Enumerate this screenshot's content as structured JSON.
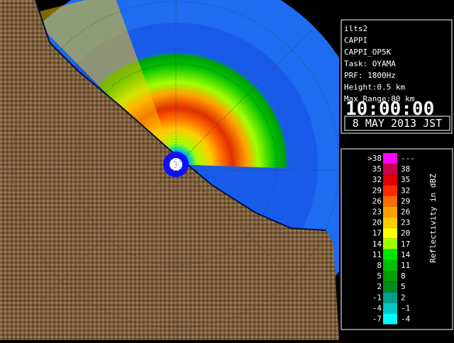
{
  "info": {
    "station": "ilts2",
    "product": "CAPPI",
    "product_name": "CAPPI_OP5K",
    "task": "Task: OYAMA",
    "prf": "PRF: 1800Hz",
    "height": "Height:0.5 km",
    "max_range": "Max Range:80 km",
    "time": "10:00:00",
    "date": "8 MAY 2013 JST"
  },
  "legend": {
    "title": "Reflectivity in dBZ",
    "rows": [
      {
        "low": ">38",
        "high": "---",
        "color": "#ff00ff"
      },
      {
        "low": "35",
        "high": "38",
        "color": "#c8004e"
      },
      {
        "low": "32",
        "high": "35",
        "color": "#e00000"
      },
      {
        "low": "29",
        "high": "32",
        "color": "#ff2a00"
      },
      {
        "low": "26",
        "high": "29",
        "color": "#ff6a00"
      },
      {
        "low": "23",
        "high": "26",
        "color": "#ffa000"
      },
      {
        "low": "20",
        "high": "23",
        "color": "#ffcc00"
      },
      {
        "low": "17",
        "high": "20",
        "color": "#ffff00"
      },
      {
        "low": "14",
        "high": "17",
        "color": "#a0ff00"
      },
      {
        "low": "11",
        "high": "14",
        "color": "#00e600"
      },
      {
        "low": "8",
        "high": "11",
        "color": "#00c000"
      },
      {
        "low": "5",
        "high": "8",
        "color": "#00a000"
      },
      {
        "low": "2",
        "high": "5",
        "color": "#008a20"
      },
      {
        "low": "-1",
        "high": "2",
        "color": "#00a08c"
      },
      {
        "low": "-4",
        "high": "-1",
        "color": "#00c8c8"
      },
      {
        "low": "-7",
        "high": "-4",
        "color": "#00ffff"
      }
    ]
  }
}
